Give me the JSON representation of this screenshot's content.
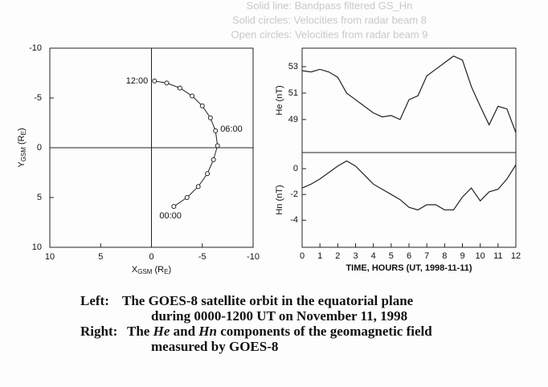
{
  "header": {
    "lines": [
      "Solid line: Bandpass filtered GS_Hn",
      "Solid circles: Velocities from radar beam 8",
      "Open circles: Velocities from radar beam 9"
    ]
  },
  "chart_data": [
    {
      "type": "scatter",
      "xlabel_parts": [
        "X",
        "GSM",
        " (R",
        "E",
        ")"
      ],
      "ylabel_parts": [
        "Y",
        "GSM",
        " (R",
        "E",
        ")"
      ],
      "xlim": [
        10,
        -10
      ],
      "ylim": [
        -10,
        10
      ],
      "xticks": [
        10,
        5,
        0,
        -5,
        -10
      ],
      "yticks": [
        -10,
        -5,
        0,
        5,
        10
      ],
      "x": [
        -2.2,
        -3.5,
        -4.6,
        -5.5,
        -6.1,
        -6.5,
        -6.3,
        -5.8,
        -5.0,
        -4.0,
        -2.8,
        -1.5,
        -0.3
      ],
      "y": [
        5.9,
        5.0,
        3.9,
        2.6,
        1.2,
        -0.2,
        -1.7,
        -3.0,
        -4.2,
        -5.2,
        -6.0,
        -6.5,
        -6.7
      ],
      "point_labels": [
        "00:00",
        null,
        null,
        null,
        null,
        null,
        "06:00",
        null,
        null,
        null,
        null,
        null,
        "12:00"
      ],
      "color": "#222222"
    },
    {
      "type": "line",
      "ylabel": "He (nT)",
      "xlim": [
        0,
        12
      ],
      "ylim": [
        46.5,
        54.4
      ],
      "yticks": [
        49,
        51,
        53
      ],
      "x": [
        0,
        0.5,
        1,
        1.5,
        2,
        2.5,
        3,
        3.5,
        4,
        4.5,
        5,
        5.5,
        6,
        6.5,
        7,
        7.5,
        8,
        8.5,
        9,
        9.5,
        10,
        10.5,
        11,
        11.5,
        12
      ],
      "values": [
        52.7,
        52.6,
        52.8,
        52.6,
        52.2,
        51.0,
        50.5,
        50.0,
        49.5,
        49.2,
        49.3,
        49.0,
        50.5,
        50.8,
        52.3,
        52.8,
        53.3,
        53.8,
        53.5,
        51.5,
        50.0,
        48.6,
        50.0,
        49.8,
        48.0
      ],
      "color": "#222222"
    },
    {
      "type": "line",
      "ylabel": "Hn (nT)",
      "xlabel": "TIME, HOURS (UT, 1998-11-11)",
      "xlim": [
        0,
        12
      ],
      "ylim": [
        -6.1,
        1.25
      ],
      "yticks": [
        0,
        -2,
        -4
      ],
      "xticks": [
        0,
        1,
        2,
        3,
        4,
        5,
        6,
        7,
        8,
        9,
        10,
        11,
        12
      ],
      "x": [
        0,
        0.5,
        1,
        1.5,
        2,
        2.5,
        3,
        3.5,
        4,
        4.5,
        5,
        5.5,
        6,
        6.5,
        7,
        7.5,
        8,
        8.5,
        9,
        9.5,
        10,
        10.5,
        11,
        11.5,
        12
      ],
      "values": [
        -1.5,
        -1.2,
        -0.8,
        -0.3,
        0.2,
        0.6,
        0.2,
        -0.5,
        -1.2,
        -1.6,
        -2.0,
        -2.4,
        -3.0,
        -3.2,
        -2.8,
        -2.8,
        -3.2,
        -3.2,
        -2.2,
        -1.5,
        -2.5,
        -1.8,
        -1.6,
        -0.8,
        0.3
      ],
      "color": "#222222"
    }
  ],
  "caption": {
    "left_label": "Left:",
    "left_lines": [
      "The GOES-8 satellite orbit in the equatorial plane",
      "during 0000-1200 UT on November 11, 1998"
    ],
    "right_label": "Right:",
    "right_parts": [
      "The ",
      "He",
      " and ",
      "Hn",
      " components of the geomagnetic field"
    ],
    "right_line2": "measured by GOES-8"
  }
}
